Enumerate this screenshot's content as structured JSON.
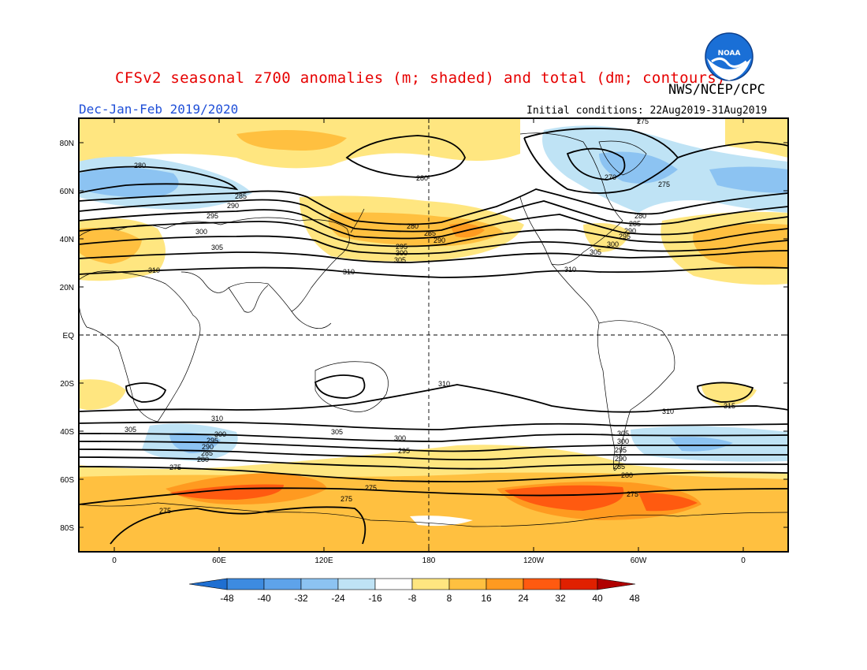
{
  "title": "CFSv2 seasonal z700 anomalies (m; shaded) and total (dm; contours)",
  "agency": "NWS/NCEP/CPC",
  "logo_text": "NOAA",
  "season": "Dec-Jan-Feb 2019/2020",
  "initial_conditions": "Initial conditions: 22Aug2019-31Aug2019",
  "lat_labels": [
    "80N",
    "60N",
    "40N",
    "20N",
    "EQ",
    "20S",
    "40S",
    "60S",
    "80S"
  ],
  "lon_labels": [
    "0",
    "60E",
    "120E",
    "180",
    "120W",
    "60W",
    "0"
  ],
  "colorbar": {
    "labels": [
      "-48",
      "-40",
      "-32",
      "-24",
      "-16",
      "-8",
      "8",
      "16",
      "24",
      "32",
      "40",
      "48"
    ],
    "colors": [
      "#1f6fd1",
      "#3d8be0",
      "#5ea3ea",
      "#8cc3f2",
      "#bfe3f5",
      "#ffffff",
      "#ffe680",
      "#ffc040",
      "#ff9a20",
      "#ff5a10",
      "#e02000",
      "#b00000"
    ]
  },
  "contour_labels": {
    "z270": "270",
    "z275": "275",
    "z280": "280",
    "z285": "285",
    "z290": "290",
    "z295": "295",
    "z300": "300",
    "z305": "305",
    "z310": "310",
    "z315": "315"
  },
  "colors": {
    "title": "#e60000",
    "season": "#1f4fd8",
    "land_outline": "#000000"
  }
}
